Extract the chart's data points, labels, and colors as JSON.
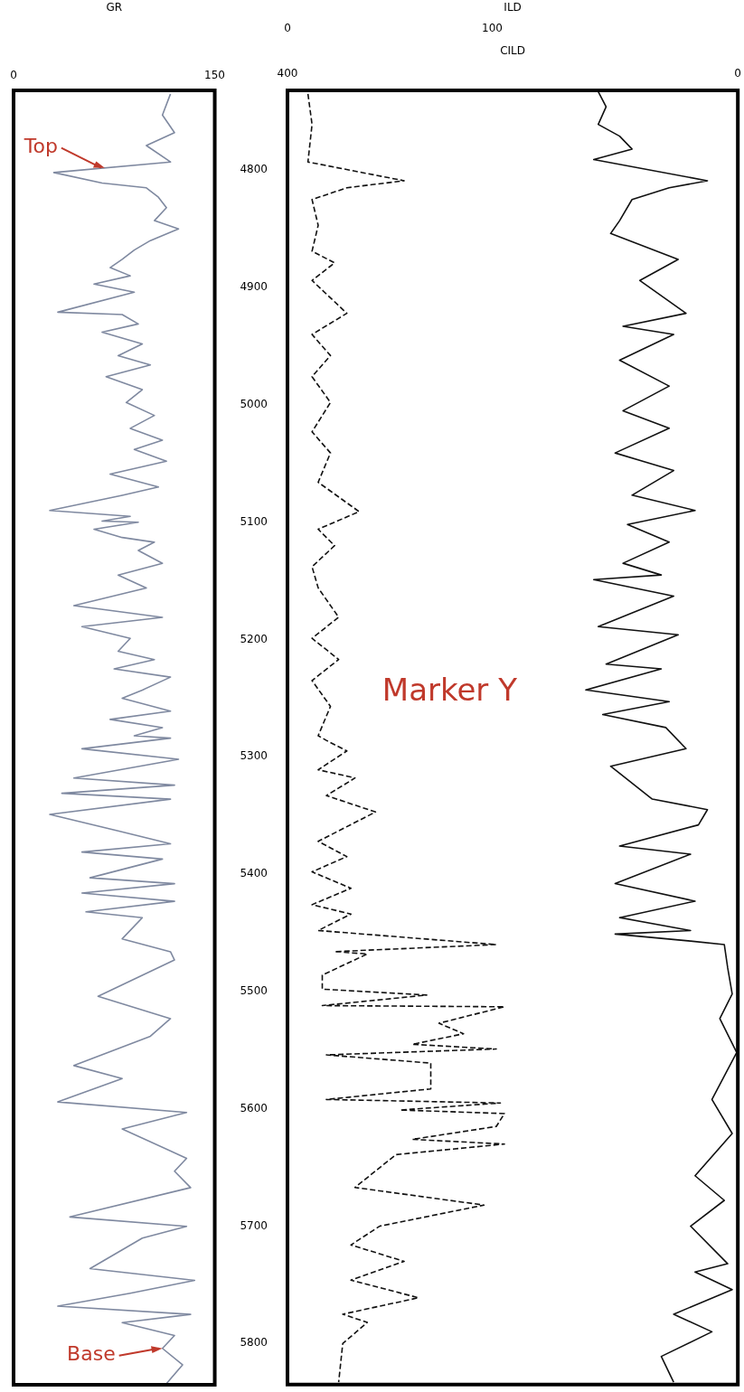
{
  "chart_data": [
    {
      "type": "line",
      "xlabel": "GR",
      "xlim": [
        0,
        150
      ],
      "xticks": [
        0,
        150
      ],
      "ylim": [
        5835,
        4732
      ],
      "tick_labels": "x",
      "legend": false,
      "marker": "none",
      "series": [
        {
          "color": "#7f89a0",
          "line_style": "solid",
          "x": [
            117,
            111,
            120,
            99,
            117,
            30,
            66,
            99,
            108,
            114,
            105,
            123,
            102,
            90,
            81,
            72,
            87,
            60,
            90,
            33,
            81,
            93,
            66,
            96,
            78,
            102,
            69,
            96,
            84,
            105,
            87,
            111,
            90,
            114,
            72,
            108,
            81,
            27,
            87,
            66,
            93,
            60,
            81,
            105,
            93,
            111,
            78,
            99,
            45,
            111,
            51,
            87,
            78,
            105,
            75,
            117,
            96,
            81,
            117,
            72,
            111,
            90,
            117,
            51,
            123,
            45,
            120,
            36,
            117,
            27,
            78,
            117,
            51,
            111,
            57,
            120,
            51,
            120,
            54,
            96,
            81,
            117,
            120,
            63,
            117,
            102,
            45,
            81,
            33,
            129,
            81,
            129,
            120,
            132,
            42,
            129,
            96,
            57,
            135,
            87,
            33,
            132,
            81,
            120,
            111,
            126,
            114
          ],
          "values": [
            4735,
            4753,
            4768,
            4779,
            4793,
            4802,
            4811,
            4815,
            4823,
            4832,
            4843,
            4850,
            4860,
            4868,
            4876,
            4883,
            4890,
            4897,
            4904,
            4921,
            4923,
            4931,
            4938,
            4948,
            4958,
            4966,
            4976,
            4987,
            4998,
            5009,
            5020,
            5030,
            5038,
            5048,
            5059,
            5070,
            5077,
            5090,
            5095,
            5099,
            5100,
            5106,
            5113,
            5117,
            5124,
            5135,
            5145,
            5156,
            5171,
            5181,
            5189,
            5199,
            5210,
            5217,
            5225,
            5232,
            5243,
            5250,
            5261,
            5268,
            5275,
            5282,
            5284,
            5293,
            5302,
            5318,
            5324,
            5331,
            5336,
            5349,
            5363,
            5374,
            5381,
            5387,
            5403,
            5408,
            5416,
            5423,
            5432,
            5437,
            5455,
            5466,
            5473,
            5504,
            5523,
            5538,
            5563,
            5574,
            5594,
            5603,
            5617,
            5642,
            5653,
            5667,
            5692,
            5700,
            5710,
            5736,
            5746,
            5757,
            5768,
            5775,
            5782,
            5793,
            5804,
            5818,
            5834
          ]
        }
      ],
      "annotations": [
        {
          "text": "Top",
          "x": 68,
          "y": 4798
        },
        {
          "text": "Base",
          "x": 111,
          "y": 5804
        }
      ]
    },
    {
      "type": "line",
      "xlabel": "ILD",
      "x2label": "CILD",
      "xlim": [
        0,
        220
      ],
      "xticks": [
        0,
        100
      ],
      "x2lim": [
        400,
        0
      ],
      "x2ticks": [
        400,
        0
      ],
      "ylim": [
        5835,
        4732
      ],
      "yticks": [
        4800,
        4900,
        5000,
        5100,
        5200,
        5300,
        5400,
        5500,
        5600,
        5700,
        5800
      ],
      "legend": false,
      "marker": "none",
      "series": [
        {
          "color": "#111111",
          "line_style": "dashed",
          "x": [
            10,
            12,
            10,
            57,
            29,
            12,
            15,
            12,
            23,
            12,
            29,
            12,
            21,
            12,
            21,
            12,
            21,
            15,
            35,
            15,
            23,
            12,
            15,
            25,
            12,
            25,
            12,
            21,
            15,
            19,
            29,
            15,
            33,
            19,
            43,
            15,
            29,
            12,
            31,
            12,
            31,
            15,
            102,
            23,
            39,
            17,
            17,
            68,
            17,
            106,
            74,
            86,
            61,
            102,
            19,
            70,
            70,
            19,
            104,
            55,
            106,
            102,
            61,
            106,
            53,
            33,
            96,
            45,
            31,
            57,
            31,
            64,
            27,
            39,
            27,
            25
          ],
          "values": [
            4735,
            4761,
            4793,
            4809,
            4815,
            4825,
            4847,
            4869,
            4879,
            4894,
            4922,
            4940,
            4958,
            4976,
            4998,
            5023,
            5041,
            5066,
            5091,
            5106,
            5120,
            5138,
            5156,
            5181,
            5199,
            5217,
            5235,
            5257,
            5282,
            5286,
            5295,
            5311,
            5318,
            5333,
            5347,
            5372,
            5385,
            5398,
            5412,
            5426,
            5434,
            5448,
            5460,
            5466,
            5468,
            5486,
            5498,
            5503,
            5512,
            5513,
            5527,
            5536,
            5545,
            5549,
            5554,
            5561,
            5583,
            5592,
            5595,
            5601,
            5604,
            5615,
            5626,
            5630,
            5639,
            5667,
            5682,
            5700,
            5716,
            5730,
            5746,
            5761,
            5775,
            5782,
            5800,
            5833
          ]
        },
        {
          "color": "#111111",
          "line_style": "solid",
          "axis": "x2",
          "x": [
            124,
            117,
            124,
            105,
            94,
            128,
            27,
            61,
            94,
            105,
            113,
            53,
            87,
            46,
            102,
            57,
            105,
            61,
            102,
            61,
            109,
            57,
            94,
            38,
            98,
            61,
            102,
            68,
            128,
            57,
            124,
            53,
            117,
            68,
            135,
            61,
            120,
            64,
            46,
            113,
            76,
            27,
            35,
            105,
            42,
            109,
            38,
            105,
            42,
            109,
            42,
            12,
            9,
            5,
            16,
            1,
            23,
            5,
            38,
            12,
            42,
            9,
            38,
            5,
            57,
            23,
            68,
            57
          ],
          "values": [
            4733,
            4746,
            4761,
            4771,
            4782,
            4791,
            4809,
            4815,
            4825,
            4843,
            4854,
            4876,
            4894,
            4922,
            4933,
            4940,
            4962,
            4984,
            5005,
            5020,
            5041,
            5056,
            5077,
            5090,
            5102,
            5117,
            5135,
            5145,
            5149,
            5163,
            5189,
            5196,
            5221,
            5225,
            5243,
            5253,
            5264,
            5275,
            5293,
            5308,
            5336,
            5345,
            5358,
            5376,
            5383,
            5408,
            5423,
            5437,
            5448,
            5451,
            5457,
            5460,
            5480,
            5502,
            5523,
            5552,
            5592,
            5621,
            5657,
            5678,
            5700,
            5732,
            5739,
            5754,
            5775,
            5790,
            5811,
            5833
          ]
        }
      ],
      "annotations": [
        "Marker Y"
      ]
    }
  ]
}
